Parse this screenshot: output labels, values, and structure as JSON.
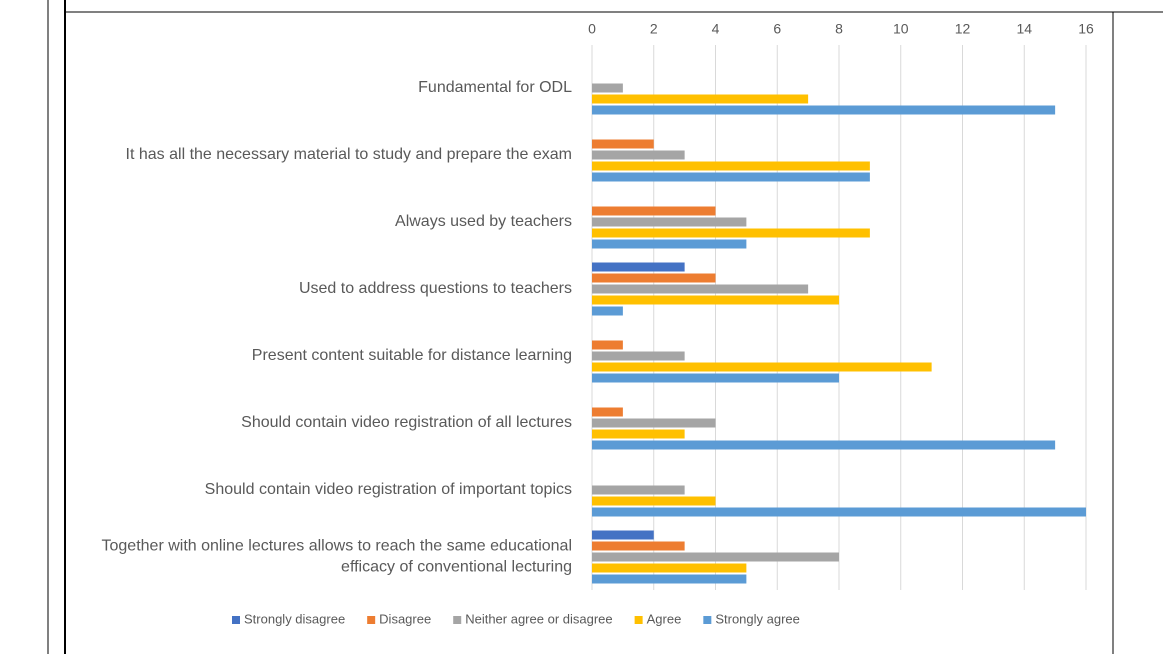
{
  "chart_data": {
    "type": "bar",
    "orientation": "horizontal",
    "categories": [
      "Fundamental for ODL",
      "It has all the necessary material to study and prepare the exam",
      "Always used by teachers",
      "Used to address questions to teachers",
      "Present content suitable for distance learning",
      "Should contain video registration of all lectures",
      "Should contain video registration of important topics",
      "Together with online lectures allows to reach the same educational efficacy of conventional lecturing"
    ],
    "series": [
      {
        "name": "Strongly disagree",
        "color": "#4472c4",
        "values": [
          0,
          0,
          0,
          3,
          0,
          0,
          0,
          2
        ]
      },
      {
        "name": "Disagree",
        "color": "#ed7d31",
        "values": [
          0,
          2,
          4,
          4,
          1,
          1,
          0,
          3
        ]
      },
      {
        "name": "Neither agree or disagree",
        "color": "#a5a5a5",
        "values": [
          1,
          3,
          5,
          7,
          3,
          4,
          3,
          8
        ]
      },
      {
        "name": "Agree",
        "color": "#ffc000",
        "values": [
          7,
          9,
          9,
          8,
          11,
          3,
          4,
          5
        ]
      },
      {
        "name": "Strongly agree",
        "color": "#5b9bd5",
        "values": [
          15,
          9,
          5,
          1,
          8,
          15,
          16,
          5
        ]
      }
    ],
    "xlim": [
      0,
      16
    ],
    "xticks": [
      0,
      2,
      4,
      6,
      8,
      10,
      12,
      14,
      16
    ],
    "grid": true,
    "legend": "bottom"
  }
}
